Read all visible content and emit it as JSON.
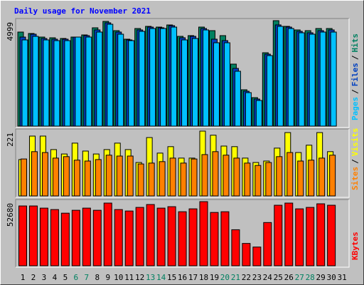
{
  "title": "Daily usage for November 2021",
  "legend_separator": "/",
  "chart_data": [
    {
      "type": "bar",
      "series": [
        {
          "name": "Hits",
          "color": "#008060",
          "values": [
            4459,
            4391,
            4222,
            4188,
            4155,
            4222,
            4323,
            4661,
            4965,
            4526,
            4121,
            4627,
            4729,
            4695,
            4796,
            4256,
            4290,
            4695,
            4526,
            4290,
            2939,
            1723,
            1351,
            3479,
            4999,
            4729,
            4560,
            4526,
            4627,
            4627,
            null
          ]
        },
        {
          "name": "Files",
          "color": "#0040c0",
          "values": [
            4222,
            4358,
            4155,
            4121,
            4121,
            4222,
            4290,
            4560,
            4898,
            4459,
            4087,
            4560,
            4695,
            4662,
            4763,
            4189,
            4256,
            4628,
            4121,
            4054,
            2736,
            1655,
            1284,
            3412,
            4797,
            4695,
            4493,
            4425,
            4526,
            4560,
            null
          ]
        },
        {
          "name": "Pages",
          "color": "#00c0ff",
          "values": [
            4087,
            4256,
            4087,
            4053,
            4053,
            4222,
            4222,
            4459,
            4830,
            4358,
            4053,
            4493,
            4628,
            4628,
            4695,
            4087,
            4155,
            4560,
            3952,
            3952,
            2601,
            1588,
            1216,
            3344,
            4729,
            4628,
            4425,
            4358,
            4459,
            4459,
            null
          ]
        }
      ],
      "ylim": [
        0,
        4999
      ],
      "yticks": [
        4999
      ]
    },
    {
      "type": "bar",
      "series": [
        {
          "name": "Visits",
          "color": "#ffff00",
          "values": [
            124,
            204,
            204,
            158,
            143,
            180,
            153,
            143,
            158,
            180,
            158,
            114,
            199,
            146,
            168,
            129,
            129,
            221,
            207,
            170,
            168,
            129,
            114,
            119,
            163,
            216,
            148,
            173,
            216,
            151,
            null
          ]
        },
        {
          "name": "Sites",
          "color": "#ff8000",
          "values": [
            126,
            151,
            148,
            129,
            134,
            122,
            119,
            124,
            139,
            136,
            136,
            109,
            112,
            117,
            129,
            112,
            126,
            141,
            151,
            139,
            129,
            112,
            104,
            114,
            134,
            148,
            119,
            122,
            129,
            139,
            null
          ]
        }
      ],
      "ylim": [
        0,
        221
      ],
      "yticks": [
        221
      ]
    },
    {
      "type": "bar",
      "series": [
        {
          "name": "KBytes",
          "color": "#ff0000",
          "values": [
            49136,
            49136,
            47360,
            46176,
            43216,
            45584,
            47360,
            45584,
            51504,
            46176,
            44992,
            47952,
            50320,
            47360,
            48544,
            44400,
            46768,
            52680,
            43808,
            44400,
            29600,
            18352,
            15392,
            35520,
            49728,
            51504,
            46768,
            47952,
            50912,
            49728,
            null
          ]
        }
      ],
      "ylim": [
        0,
        52680
      ],
      "yticks": [
        52680
      ],
      "categories": [
        "1",
        "2",
        "3",
        "4",
        "5",
        "6",
        "7",
        "8",
        "9",
        "10",
        "11",
        "12",
        "13",
        "14",
        "15",
        "16",
        "17",
        "18",
        "19",
        "20",
        "21",
        "22",
        "23",
        "24",
        "25",
        "26",
        "27",
        "28",
        "29",
        "30",
        "31"
      ],
      "category_colors": [
        "#000000",
        "#000000",
        "#000000",
        "#000000",
        "#000000",
        "#008060",
        "#008060",
        "#000000",
        "#000000",
        "#000000",
        "#000000",
        "#000000",
        "#008060",
        "#008060",
        "#000000",
        "#000000",
        "#000000",
        "#000000",
        "#000000",
        "#008060",
        "#008060",
        "#000000",
        "#000000",
        "#000000",
        "#000000",
        "#000000",
        "#008060",
        "#008060",
        "#000000",
        "#000000",
        "#000000"
      ]
    }
  ]
}
